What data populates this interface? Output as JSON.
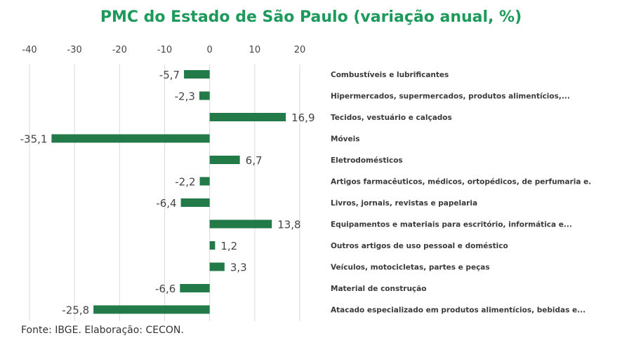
{
  "title": "PMC do Estado de São Paulo (variação anual, %)",
  "source": "Fonte: IBGE. Elaboração: CECON.",
  "colors": {
    "bar": "#217a48",
    "title": "#1d9a5b",
    "grid": "#d9d9d9"
  },
  "chart_data": {
    "type": "bar",
    "orientation": "horizontal",
    "xlim": [
      -40,
      20
    ],
    "xticks": [
      "-40",
      "-30",
      "-20",
      "-10",
      "0",
      "10",
      "20"
    ],
    "xtick_values": [
      -40,
      -30,
      -20,
      -10,
      0,
      10,
      20
    ],
    "grid": "vertical",
    "categories": [
      "Combustíveis e lubrificantes",
      "Hipermercados, supermercados, produtos alimentícios,...",
      "Tecidos, vestuário e calçados",
      "Móveis",
      "Eletrodomésticos",
      "Artigos farmacêuticos, médicos, ortopédicos, de perfumaria e.",
      "Livros, jornais, revistas e papelaria",
      "Equipamentos e materiais para escritório, informática e...",
      "Outros artigos de uso pessoal e doméstico",
      "Veículos, motocicletas, partes e peças",
      "Material de construção",
      "Atacado especializado em produtos alimentícios, bebidas e..."
    ],
    "values": [
      -5.7,
      -2.3,
      16.9,
      -35.1,
      6.7,
      -2.2,
      -6.4,
      13.8,
      1.2,
      3.3,
      -6.6,
      -25.8
    ],
    "labels": [
      "-5,7",
      "-2,3",
      "16,9",
      "-35,1",
      "6,7",
      "-2,2",
      "-6,4",
      "13,8",
      "1,2",
      "3,3",
      "-6,6",
      "-25,8"
    ]
  }
}
